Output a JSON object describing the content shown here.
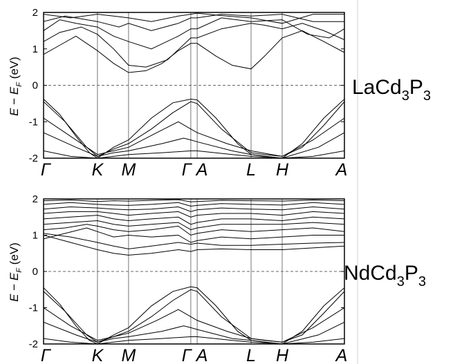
{
  "chart_data": [
    {
      "type": "line",
      "compound": {
        "base": "LaCd",
        "sub1": "3",
        "mid": "P",
        "sub2": "3"
      },
      "ylabel": {
        "E": "E",
        "minus": " − ",
        "EF": "E",
        "F": "F",
        "unit": " (eV)"
      },
      "ylim": [
        -2,
        2
      ],
      "yticks": [
        -2,
        -1,
        0,
        1,
        2
      ],
      "k_points": [
        "Γ",
        "K",
        "M",
        "Γ",
        "A",
        "L",
        "H",
        "A"
      ],
      "k_positions": [
        0,
        1.0,
        1.577,
        2.732,
        2.85,
        3.85,
        4.427,
        5.582
      ],
      "fermi_level": 0,
      "grid": "vertical lines at high-symmetry points",
      "series": [
        {
          "x": [
            0,
            0.3,
            0.6,
            0.85,
            1.0,
            1.3,
            1.577,
            2.0,
            2.4,
            2.732,
            2.85,
            3.2,
            3.6,
            3.85,
            4.1,
            4.427,
            4.8,
            5.2,
            5.582
          ],
          "y": [
            -0.38,
            -0.8,
            -1.4,
            -1.85,
            -2.0,
            -1.7,
            -1.5,
            -0.9,
            -0.48,
            -0.38,
            -0.4,
            -0.9,
            -1.6,
            -1.9,
            -1.95,
            -2.0,
            -1.6,
            -0.9,
            -0.38
          ]
        },
        {
          "x": [
            0,
            0.4,
            0.8,
            1.0,
            1.3,
            1.577,
            2.0,
            2.4,
            2.732,
            2.85,
            3.3,
            3.85,
            4.1,
            4.427,
            4.8,
            5.2,
            5.582
          ],
          "y": [
            -0.45,
            -1.0,
            -1.7,
            -1.95,
            -1.75,
            -1.6,
            -1.2,
            -0.75,
            -0.45,
            -0.5,
            -1.2,
            -1.85,
            -1.9,
            -1.95,
            -1.7,
            -1.1,
            -0.45
          ]
        },
        {
          "x": [
            0,
            0.5,
            1.0,
            1.3,
            1.577,
            2.1,
            2.5,
            2.732,
            2.85,
            3.4,
            3.85,
            4.427,
            5.0,
            5.582
          ],
          "y": [
            -0.9,
            -1.4,
            -1.9,
            -1.8,
            -1.7,
            -1.3,
            -1.0,
            -1.2,
            -1.3,
            -1.6,
            -1.8,
            -1.95,
            -1.5,
            -0.9
          ]
        },
        {
          "x": [
            0,
            0.6,
            1.0,
            1.3,
            1.577,
            2.2,
            2.6,
            2.732,
            2.85,
            3.5,
            3.85,
            4.427,
            5.1,
            5.582
          ],
          "y": [
            -1.3,
            -1.7,
            -1.95,
            -1.85,
            -1.8,
            -1.6,
            -1.45,
            -1.5,
            -1.55,
            -1.8,
            -1.9,
            -2.0,
            -1.7,
            -1.3
          ]
        },
        {
          "x": [
            0,
            0.5,
            1.0,
            1.3,
            1.577,
            2.2,
            2.732,
            2.85,
            3.5,
            3.85,
            4.427,
            5.0,
            5.582
          ],
          "y": [
            -1.8,
            -1.95,
            -2.0,
            -1.95,
            -1.9,
            -1.85,
            -1.8,
            -1.8,
            -1.9,
            -1.95,
            -2.0,
            -1.95,
            -1.8
          ]
        },
        {
          "x": [
            0,
            0.3,
            0.6,
            0.9,
            1.0,
            1.3,
            1.577,
            1.9,
            2.2,
            2.5,
            2.732,
            2.85,
            3.2,
            3.5,
            3.85,
            4.1,
            4.427,
            4.8,
            5.2,
            5.582
          ],
          "y": [
            0.85,
            1.1,
            1.35,
            1.05,
            0.95,
            0.6,
            0.35,
            0.4,
            0.6,
            0.95,
            1.15,
            1.15,
            0.8,
            0.55,
            0.45,
            0.8,
            1.3,
            1.5,
            1.2,
            0.9
          ]
        },
        {
          "x": [
            0,
            0.3,
            0.7,
            1.0,
            1.3,
            1.577,
            1.9,
            2.3,
            2.732,
            2.85,
            3.3,
            3.85,
            4.1,
            4.427,
            4.8,
            5.2,
            5.582
          ],
          "y": [
            1.2,
            1.45,
            1.6,
            1.4,
            1.0,
            0.55,
            0.5,
            0.7,
            1.3,
            1.3,
            1.55,
            1.7,
            1.65,
            1.55,
            1.7,
            1.5,
            1.25
          ]
        },
        {
          "x": [
            0,
            0.3,
            0.6,
            1.0,
            1.3,
            1.577,
            2.0,
            2.5,
            2.732,
            2.85,
            3.3,
            3.85,
            4.427,
            4.9,
            5.3,
            5.582
          ],
          "y": [
            1.5,
            1.8,
            1.7,
            1.6,
            1.35,
            1.2,
            1.0,
            1.35,
            1.55,
            1.55,
            1.85,
            1.75,
            1.8,
            1.4,
            1.3,
            1.55
          ]
        },
        {
          "x": [
            0,
            0.4,
            0.8,
            1.0,
            1.4,
            1.577,
            2.0,
            2.5,
            2.732,
            2.85,
            3.3,
            3.85,
            4.427,
            5.0,
            5.582
          ],
          "y": [
            1.75,
            1.9,
            1.8,
            1.75,
            1.6,
            1.7,
            1.5,
            1.7,
            1.85,
            1.85,
            1.95,
            1.9,
            1.95,
            1.75,
            1.75
          ]
        },
        {
          "x": [
            0,
            0.5,
            1.0,
            1.3,
            1.577,
            2.0,
            2.5,
            2.732,
            2.85,
            3.4,
            3.85,
            4.427,
            5.0,
            5.582
          ],
          "y": [
            1.95,
            1.85,
            1.95,
            1.9,
            1.85,
            1.75,
            1.9,
            1.95,
            1.98,
            1.9,
            1.85,
            1.7,
            1.95,
            1.95
          ]
        }
      ]
    },
    {
      "type": "line",
      "compound": {
        "base": "NdCd",
        "sub1": "3",
        "mid": "P",
        "sub2": "3"
      },
      "ylabel": {
        "E": "E",
        "minus": " − ",
        "EF": "E",
        "F": "F",
        "unit": " (eV)"
      },
      "ylim": [
        -2,
        2
      ],
      "yticks": [
        -2,
        -1,
        0,
        1,
        2
      ],
      "k_points": [
        "Γ",
        "K",
        "M",
        "Γ",
        "A",
        "L",
        "H",
        "A"
      ],
      "k_positions": [
        0,
        1.0,
        1.577,
        2.732,
        2.85,
        3.85,
        4.427,
        5.582
      ],
      "fermi_level": 0,
      "grid": "vertical lines at high-symmetry points",
      "series": [
        {
          "x": [
            0,
            0.3,
            0.6,
            0.85,
            1.0,
            1.3,
            1.577,
            2.0,
            2.4,
            2.732,
            2.85,
            3.2,
            3.6,
            3.85,
            4.1,
            4.427,
            4.8,
            5.2,
            5.582
          ],
          "y": [
            -0.45,
            -0.9,
            -1.5,
            -1.9,
            -2.0,
            -1.75,
            -1.55,
            -0.95,
            -0.55,
            -0.42,
            -0.45,
            -0.95,
            -1.65,
            -1.9,
            -1.95,
            -2.0,
            -1.65,
            -0.95,
            -0.45
          ]
        },
        {
          "x": [
            0,
            0.4,
            0.8,
            1.0,
            1.3,
            1.577,
            2.0,
            2.4,
            2.732,
            2.85,
            3.3,
            3.85,
            4.1,
            4.427,
            4.8,
            5.2,
            5.582
          ],
          "y": [
            -0.55,
            -1.1,
            -1.75,
            -1.95,
            -1.8,
            -1.65,
            -1.25,
            -0.8,
            -0.5,
            -0.55,
            -1.25,
            -1.85,
            -1.9,
            -1.95,
            -1.75,
            -1.15,
            -0.55
          ]
        },
        {
          "x": [
            0,
            0.5,
            1.0,
            1.3,
            1.577,
            2.1,
            2.5,
            2.732,
            2.85,
            3.4,
            3.85,
            4.427,
            5.0,
            5.582
          ],
          "y": [
            -1.0,
            -1.5,
            -1.9,
            -1.8,
            -1.7,
            -1.35,
            -1.05,
            -1.25,
            -1.35,
            -1.65,
            -1.85,
            -1.95,
            -1.55,
            -1.0
          ]
        },
        {
          "x": [
            0,
            0.6,
            1.0,
            1.3,
            1.577,
            2.2,
            2.6,
            2.732,
            2.85,
            3.5,
            3.85,
            4.427,
            5.1,
            5.582
          ],
          "y": [
            -1.4,
            -1.75,
            -1.95,
            -1.85,
            -1.8,
            -1.65,
            -1.5,
            -1.55,
            -1.6,
            -1.85,
            -1.9,
            -2.0,
            -1.75,
            -1.4
          ]
        },
        {
          "x": [
            0,
            0.5,
            1.0,
            1.577,
            2.2,
            2.732,
            2.85,
            3.5,
            3.85,
            4.427,
            5.0,
            5.582
          ],
          "y": [
            -1.85,
            -1.95,
            -2.0,
            -1.9,
            -1.85,
            -1.8,
            -1.8,
            -1.9,
            -1.95,
            -2.0,
            -1.95,
            -1.85
          ]
        },
        {
          "x": [
            0,
            0.5,
            1.0,
            1.3,
            1.577,
            2.0,
            2.5,
            2.732,
            2.85,
            3.3,
            3.85,
            4.427,
            5.0,
            5.582
          ],
          "y": [
            1.0,
            0.8,
            0.6,
            0.5,
            0.45,
            0.5,
            0.6,
            0.55,
            0.6,
            0.62,
            0.6,
            0.6,
            0.65,
            0.7
          ]
        },
        {
          "x": [
            0,
            0.5,
            1.0,
            1.3,
            1.577,
            2.0,
            2.5,
            2.732,
            2.85,
            3.3,
            3.85,
            4.427,
            5.0,
            5.582
          ],
          "y": [
            1.05,
            0.95,
            0.8,
            0.7,
            0.62,
            0.7,
            0.8,
            0.75,
            0.78,
            0.72,
            0.72,
            0.75,
            0.78,
            0.8
          ]
        },
        {
          "x": [
            0,
            0.4,
            0.8,
            1.0,
            1.3,
            1.577,
            2.0,
            2.5,
            2.732,
            2.85,
            3.3,
            3.85,
            4.427,
            5.0,
            5.582
          ],
          "y": [
            0.9,
            1.05,
            1.2,
            1.1,
            0.95,
            1.0,
            0.95,
            1.0,
            0.8,
            0.85,
            0.95,
            0.9,
            0.95,
            1.0,
            1.0
          ]
        },
        {
          "x": [
            0,
            0.4,
            0.8,
            1.0,
            1.3,
            1.577,
            2.0,
            2.5,
            2.732,
            2.85,
            3.3,
            3.85,
            4.427,
            5.0,
            5.582
          ],
          "y": [
            1.15,
            1.2,
            1.3,
            1.25,
            1.15,
            1.1,
            1.15,
            1.25,
            1.0,
            1.05,
            1.15,
            1.1,
            1.15,
            1.2,
            1.1
          ]
        },
        {
          "x": [
            0,
            0.5,
            1.0,
            1.3,
            1.577,
            2.0,
            2.5,
            2.732,
            2.85,
            3.3,
            3.85,
            4.427,
            5.0,
            5.582
          ],
          "y": [
            1.3,
            1.35,
            1.4,
            1.3,
            1.25,
            1.3,
            1.35,
            1.15,
            1.2,
            1.3,
            1.3,
            1.3,
            1.35,
            1.3
          ]
        },
        {
          "x": [
            0,
            0.5,
            1.0,
            1.3,
            1.577,
            2.0,
            2.5,
            2.732,
            2.85,
            3.3,
            3.85,
            4.427,
            5.0,
            5.582
          ],
          "y": [
            1.45,
            1.5,
            1.55,
            1.45,
            1.4,
            1.45,
            1.5,
            1.3,
            1.35,
            1.45,
            1.45,
            1.4,
            1.5,
            1.45
          ]
        },
        {
          "x": [
            0,
            0.5,
            1.0,
            1.3,
            1.577,
            2.0,
            2.5,
            2.732,
            2.85,
            3.3,
            3.85,
            4.427,
            5.0,
            5.582
          ],
          "y": [
            1.6,
            1.65,
            1.65,
            1.6,
            1.55,
            1.6,
            1.65,
            1.5,
            1.55,
            1.6,
            1.6,
            1.55,
            1.65,
            1.6
          ]
        },
        {
          "x": [
            0,
            0.5,
            1.0,
            1.3,
            1.577,
            2.0,
            2.5,
            2.732,
            2.85,
            3.3,
            3.85,
            4.427,
            5.0,
            5.582
          ],
          "y": [
            1.72,
            1.78,
            1.75,
            1.72,
            1.7,
            1.72,
            1.78,
            1.65,
            1.7,
            1.75,
            1.72,
            1.7,
            1.78,
            1.72
          ]
        },
        {
          "x": [
            0,
            0.5,
            1.0,
            1.3,
            1.577,
            2.0,
            2.5,
            2.732,
            2.85,
            3.3,
            3.85,
            4.427,
            5.0,
            5.582
          ],
          "y": [
            1.85,
            1.9,
            1.85,
            1.83,
            1.82,
            1.85,
            1.9,
            1.8,
            1.82,
            1.87,
            1.85,
            1.83,
            1.9,
            1.85
          ]
        },
        {
          "x": [
            0,
            0.5,
            1.0,
            1.3,
            1.577,
            2.0,
            2.5,
            2.732,
            2.85,
            3.3,
            3.85,
            4.427,
            5.0,
            5.582
          ],
          "y": [
            1.95,
            1.97,
            1.93,
            1.95,
            1.94,
            1.96,
            1.98,
            1.92,
            1.93,
            1.96,
            1.95,
            1.94,
            1.97,
            1.95
          ]
        }
      ]
    }
  ]
}
